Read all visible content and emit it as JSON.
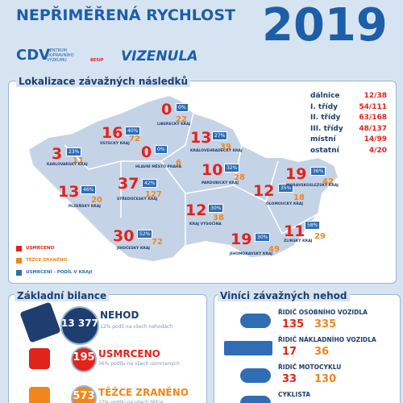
{
  "header": {
    "title": "NEPŘIMĚŘENÁ RYCHLOST",
    "year": "2019",
    "logos": [
      "CDV",
      "CENTRUM DOPRAVNÍHO VÝZKUMU",
      "BESIP",
      "VIZENULA"
    ]
  },
  "map": {
    "title": "Lokalizace závažných následků",
    "roads": [
      {
        "name": "dálnice",
        "value": "12/38"
      },
      {
        "name": "I. třídy",
        "value": "54/111"
      },
      {
        "name": "II. třídy",
        "value": "63/168"
      },
      {
        "name": "III. třídy",
        "value": "48/137"
      },
      {
        "name": "místní",
        "value": "14/99"
      },
      {
        "name": "ostatní",
        "value": "4/20"
      }
    ],
    "regions": [
      {
        "name": "LIBERECKÝ KRAJ",
        "killed": "0",
        "injured": "22",
        "share": "0%"
      },
      {
        "name": "ÚSTECKÝ KRAJ",
        "killed": "16",
        "injured": "72",
        "share": "40%"
      },
      {
        "name": "KARLOVARSKÝ KRAJ",
        "killed": "3",
        "injured": "11",
        "share": "23%"
      },
      {
        "name": "HLAVNÍ MĚSTO PRAHA",
        "killed": "0",
        "injured": "6",
        "share": "0%"
      },
      {
        "name": "KRÁLOVÉHRADECKÝ KRAJ",
        "killed": "13",
        "injured": "39",
        "share": "27%"
      },
      {
        "name": "PARDUBICKÝ KRAJ",
        "killed": "10",
        "injured": "28",
        "share": "32%"
      },
      {
        "name": "PLZEŇSKÝ KRAJ",
        "killed": "13",
        "injured": "20",
        "share": "46%"
      },
      {
        "name": "STŘEDOČESKÝ KRAJ",
        "killed": "37",
        "injured": "127",
        "share": "42%"
      },
      {
        "name": "KRAJ VYSOČINA",
        "killed": "12",
        "injured": "38",
        "share": "30%"
      },
      {
        "name": "OLOMOUCKÝ KRAJ",
        "killed": "12",
        "injured": "18",
        "share": "35%"
      },
      {
        "name": "MORAVSKOSLEZSKÝ KRAJ",
        "killed": "19",
        "injured": "42",
        "share": "36%"
      },
      {
        "name": "JIHOČESKÝ KRAJ",
        "killed": "30",
        "injured": "72",
        "share": "52%"
      },
      {
        "name": "JIHOMORAVSKÝ KRAJ",
        "killed": "19",
        "injured": "49",
        "share": "30%"
      },
      {
        "name": "ZLÍNSKÝ KRAJ",
        "killed": "11",
        "injured": "29",
        "share": "58%"
      }
    ],
    "legend": [
      "USMRCENO",
      "TĚŽCE ZRANĚNO",
      "USMRCENÍ - PODÍL V KRAJI"
    ]
  },
  "balance": {
    "title": "Základní bilance",
    "items": [
      {
        "value": "13 377",
        "label": "NEHOD",
        "note": "12% podíl na všech nehodách"
      },
      {
        "value": "195",
        "label": "USMRCENO",
        "note": "36% podílu na všech usmrcených"
      },
      {
        "value": "573",
        "label": "TĚŽCE ZRANĚNO",
        "note": "27% podílu na všech těžce"
      }
    ]
  },
  "culprits": {
    "title": "Viníci závažných nehod",
    "items": [
      {
        "label": "ŘIDIČ OSOBNÍHO VOZIDLA",
        "killed": "135",
        "injured": "335"
      },
      {
        "label": "ŘIDIČ NÁKLADNÍHO VOZIDLA",
        "killed": "17",
        "injured": "36"
      },
      {
        "label": "ŘIDIČ MOTOCYKLU",
        "killed": "33",
        "injured": "130"
      },
      {
        "label": "CYKLISTA"
      }
    ]
  }
}
